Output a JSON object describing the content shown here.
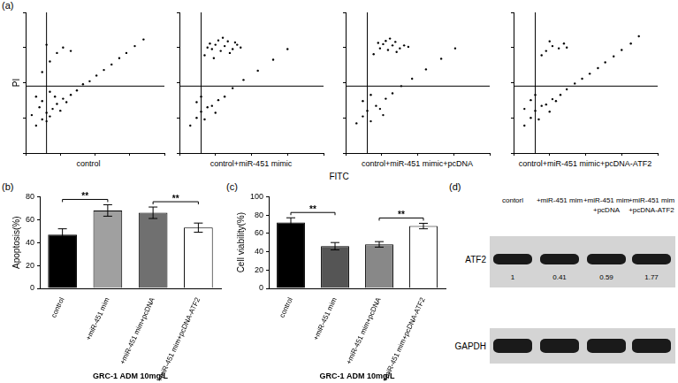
{
  "panel_labels": [
    "(a)",
    "(b)",
    "(c)",
    "(d)"
  ],
  "flow_xlabel": "FITC",
  "chart_data": [
    {
      "type": "scatter",
      "title": "control",
      "ylabel": "PI",
      "log": true,
      "tick_labels": false,
      "grid": false,
      "color": "#000000",
      "xlim": [
        1,
        10000
      ],
      "ylim": [
        1,
        10000
      ],
      "xticks": [
        1,
        10,
        100,
        1000,
        10000
      ],
      "yticks": [
        1,
        10,
        100,
        1000,
        10000
      ],
      "gates": {
        "x": 4,
        "y": 80
      },
      "points": [
        [
          2,
          6
        ],
        [
          3,
          9
        ],
        [
          4,
          14
        ],
        [
          2.5,
          20
        ],
        [
          5,
          11
        ],
        [
          6,
          18
        ],
        [
          3,
          30
        ],
        [
          8,
          25
        ],
        [
          1.5,
          12
        ],
        [
          10,
          16
        ],
        [
          7,
          40
        ],
        [
          4,
          8
        ],
        [
          12,
          35
        ],
        [
          15,
          28
        ],
        [
          2,
          40
        ],
        [
          5,
          55
        ],
        [
          20,
          45
        ],
        [
          30,
          60
        ],
        [
          45,
          90
        ],
        [
          70,
          110
        ],
        [
          110,
          160
        ],
        [
          180,
          230
        ],
        [
          300,
          330
        ],
        [
          500,
          500
        ],
        [
          800,
          700
        ],
        [
          1400,
          1100
        ],
        [
          2500,
          1700
        ],
        [
          3,
          200
        ],
        [
          5,
          400
        ],
        [
          8,
          700
        ],
        [
          12,
          1000
        ],
        [
          4,
          1200
        ],
        [
          20,
          800
        ]
      ]
    },
    {
      "type": "scatter",
      "title": "control+miR-451 mimic",
      "log": true,
      "tick_labels": false,
      "grid": false,
      "color": "#000000",
      "xlim": [
        1,
        10000
      ],
      "ylim": [
        1,
        10000
      ],
      "xticks": [
        1,
        10,
        100,
        1000,
        10000
      ],
      "yticks": [
        1,
        10,
        100,
        1000,
        10000
      ],
      "gates": {
        "x": 4,
        "y": 80
      },
      "points": [
        [
          2,
          6
        ],
        [
          3,
          10
        ],
        [
          4,
          15
        ],
        [
          5,
          9
        ],
        [
          6,
          20
        ],
        [
          3,
          28
        ],
        [
          8,
          22
        ],
        [
          10,
          14
        ],
        [
          12,
          32
        ],
        [
          4,
          40
        ],
        [
          18,
          40
        ],
        [
          30,
          70
        ],
        [
          60,
          120
        ],
        [
          150,
          220
        ],
        [
          400,
          450
        ],
        [
          1000,
          900
        ],
        [
          5,
          600
        ],
        [
          8,
          900
        ],
        [
          10,
          1200
        ],
        [
          14,
          800
        ],
        [
          18,
          1100
        ],
        [
          22,
          1500
        ],
        [
          30,
          900
        ],
        [
          12,
          1600
        ],
        [
          7,
          1300
        ],
        [
          40,
          1200
        ],
        [
          25,
          700
        ],
        [
          9,
          500
        ],
        [
          16,
          1900
        ],
        [
          50,
          1000
        ],
        [
          35,
          1400
        ],
        [
          6,
          1000
        ]
      ]
    },
    {
      "type": "scatter",
      "title": "control+miR-451 mimic+pcDNA",
      "log": true,
      "tick_labels": false,
      "grid": false,
      "color": "#000000",
      "xlim": [
        1,
        10000
      ],
      "ylim": [
        1,
        10000
      ],
      "xticks": [
        1,
        10,
        100,
        1000,
        10000
      ],
      "yticks": [
        1,
        10,
        100,
        1000,
        10000
      ],
      "gates": {
        "x": 4,
        "y": 80
      },
      "points": [
        [
          2,
          7
        ],
        [
          3,
          11
        ],
        [
          4,
          16
        ],
        [
          5,
          8
        ],
        [
          7,
          22
        ],
        [
          3,
          30
        ],
        [
          9,
          18
        ],
        [
          11,
          12
        ],
        [
          13,
          35
        ],
        [
          5,
          45
        ],
        [
          20,
          50
        ],
        [
          35,
          80
        ],
        [
          70,
          130
        ],
        [
          170,
          240
        ],
        [
          450,
          480
        ],
        [
          1100,
          950
        ],
        [
          6,
          650
        ],
        [
          9,
          950
        ],
        [
          11,
          1250
        ],
        [
          15,
          850
        ],
        [
          20,
          1150
        ],
        [
          24,
          1450
        ],
        [
          32,
          950
        ],
        [
          13,
          1550
        ],
        [
          8,
          1350
        ],
        [
          42,
          1150
        ],
        [
          26,
          750
        ],
        [
          17,
          1800
        ],
        [
          55,
          1050
        ]
      ]
    },
    {
      "type": "scatter",
      "title": "control+miR-451 mimic+pcDNA-ATF2",
      "log": true,
      "tick_labels": false,
      "grid": false,
      "color": "#000000",
      "xlim": [
        1,
        10000
      ],
      "ylim": [
        1,
        10000
      ],
      "xticks": [
        1,
        10,
        100,
        1000,
        10000
      ],
      "yticks": [
        1,
        10,
        100,
        1000,
        10000
      ],
      "gates": {
        "x": 4,
        "y": 80
      },
      "points": [
        [
          2,
          6
        ],
        [
          3,
          10
        ],
        [
          4,
          16
        ],
        [
          5,
          9
        ],
        [
          6,
          22
        ],
        [
          3,
          32
        ],
        [
          8,
          24
        ],
        [
          10,
          15
        ],
        [
          12,
          34
        ],
        [
          4,
          45
        ],
        [
          2,
          18
        ],
        [
          15,
          30
        ],
        [
          20,
          45
        ],
        [
          30,
          65
        ],
        [
          50,
          95
        ],
        [
          80,
          130
        ],
        [
          130,
          180
        ],
        [
          220,
          260
        ],
        [
          350,
          380
        ],
        [
          600,
          560
        ],
        [
          1000,
          850
        ],
        [
          1800,
          1300
        ],
        [
          3000,
          2100
        ],
        [
          8,
          800
        ],
        [
          12,
          1100
        ],
        [
          18,
          950
        ],
        [
          25,
          1300
        ],
        [
          10,
          1500
        ],
        [
          30,
          1000
        ],
        [
          6,
          600
        ]
      ]
    },
    {
      "type": "bar",
      "ylabel": "Apoptosis(%)",
      "xlabel": "GRC-1 ADM 10mg/L",
      "grid": false,
      "categories": [
        "control",
        "+miR-451 mim",
        "+miR-451 mim+pcDNA",
        "+miR-451 mim+pcDNA-ATF2"
      ],
      "values": [
        47,
        68,
        66,
        53
      ],
      "errors": [
        5,
        5,
        5,
        4
      ],
      "colors": [
        "#000000",
        "#a0a0a0",
        "#707070",
        "#ffffff"
      ],
      "ylim": [
        0,
        80
      ],
      "yticks": [
        0,
        20,
        40,
        60,
        80
      ],
      "annotations": [
        {
          "text": "**",
          "between": [
            "control",
            "+miR-451 mim"
          ]
        },
        {
          "text": "**",
          "between": [
            "+miR-451 mim+pcDNA",
            "+miR-451 mim+pcDNA-ATF2"
          ]
        }
      ]
    },
    {
      "type": "bar",
      "ylabel": "Cell viability(%)",
      "xlabel": "GRC-1 ADM 10mg/L",
      "grid": false,
      "categories": [
        "control",
        "+miR-451 mim",
        "+miR-451 mim+pcDNA",
        "+miR-451 mim+pcDNA-ATF2"
      ],
      "values": [
        72,
        46,
        48,
        68
      ],
      "errors": [
        5,
        4,
        3,
        3
      ],
      "colors": [
        "#000000",
        "#555555",
        "#888888",
        "#ffffff"
      ],
      "ylim": [
        0,
        100
      ],
      "yticks": [
        0,
        20,
        40,
        60,
        80,
        100
      ],
      "annotations": [
        {
          "text": "**",
          "between": [
            "control",
            "+miR-451 mim"
          ]
        },
        {
          "text": "**",
          "between": [
            "+miR-451 mim+pcDNA",
            "+miR-451 mim+pcDNA-ATF2"
          ]
        }
      ]
    }
  ],
  "blot": {
    "lanes": [
      [
        "contorl"
      ],
      [
        "+miR-451 mim"
      ],
      [
        "+miR-451 mim",
        "+pcDNA"
      ],
      [
        "+miR-451 mim",
        "+pcDNA-ATF2"
      ]
    ],
    "rows": [
      {
        "name": "ATF2",
        "values": [
          1,
          0.41,
          0.59,
          1.77
        ]
      },
      {
        "name": "GAPDH"
      }
    ]
  }
}
